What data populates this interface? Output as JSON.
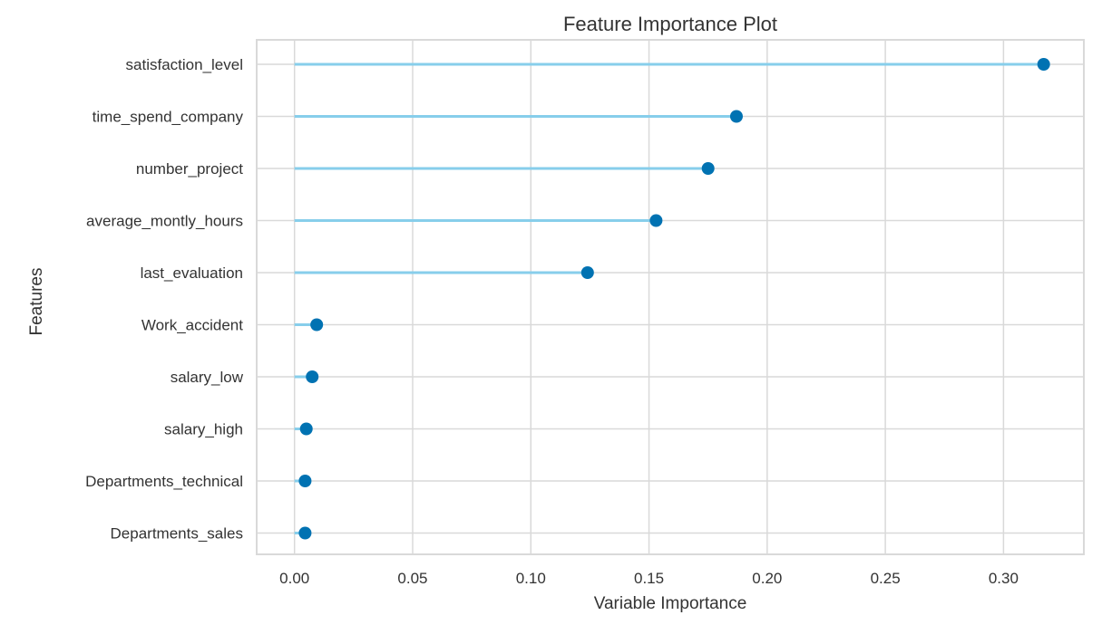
{
  "chart_data": {
    "type": "scatter",
    "title": "Feature Importance Plot",
    "xlabel": "Variable Importance",
    "ylabel": "Features",
    "xlim": [
      -0.016,
      0.334
    ],
    "xticks": [
      0.0,
      0.05,
      0.1,
      0.15,
      0.2,
      0.25,
      0.3
    ],
    "xtick_labels": [
      "0.00",
      "0.05",
      "0.10",
      "0.15",
      "0.20",
      "0.25",
      "0.30"
    ],
    "categories": [
      "satisfaction_level",
      "time_spend_company",
      "number_project",
      "average_montly_hours",
      "last_evaluation",
      "Work_accident",
      "salary_low",
      "salary_high",
      "Departments_technical",
      "Departments_sales"
    ],
    "values": [
      0.317,
      0.187,
      0.175,
      0.153,
      0.124,
      0.0094,
      0.0075,
      0.005,
      0.0045,
      0.0045
    ],
    "grid": true,
    "colors": {
      "stem": "#87ceeb",
      "marker": "#0072b2",
      "grid": "#d9d9d9"
    }
  }
}
